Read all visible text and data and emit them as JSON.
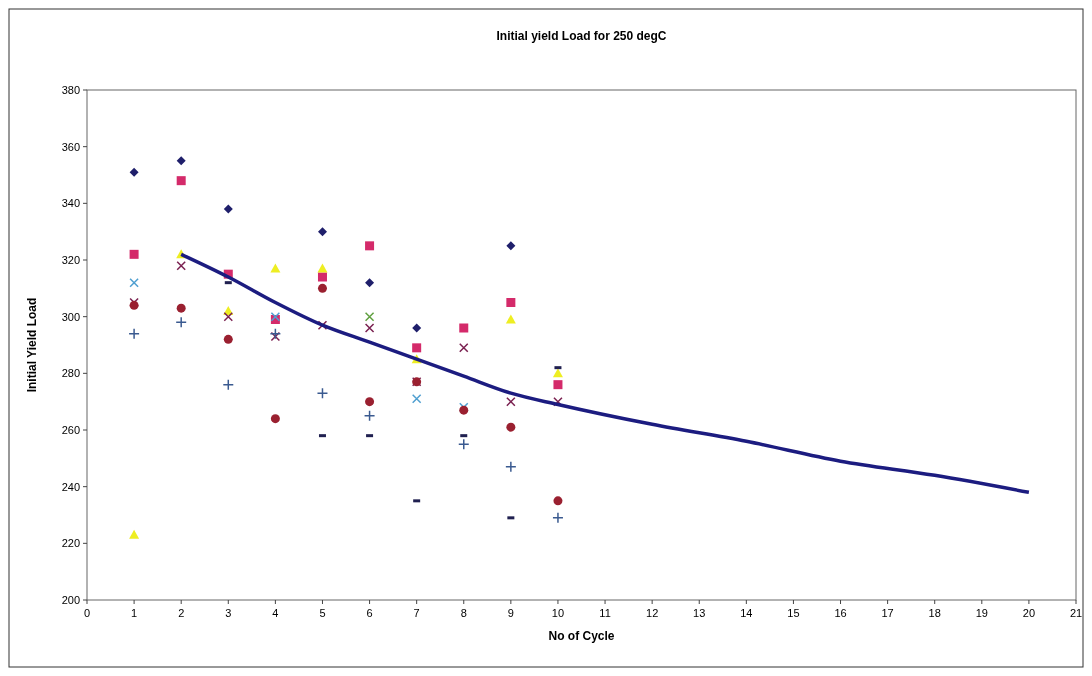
{
  "chart_data": {
    "type": "scatter",
    "title": "Initial yield Load for 250 degC",
    "xlabel": "No of Cycle",
    "ylabel": "Initial Yield Load",
    "xlim": [
      0,
      21
    ],
    "xticks": [
      0,
      1,
      2,
      3,
      4,
      5,
      6,
      7,
      8,
      9,
      10,
      11,
      12,
      13,
      14,
      15,
      16,
      17,
      18,
      19,
      20,
      21
    ],
    "ylim": [
      200,
      380
    ],
    "yticks": [
      200,
      220,
      240,
      260,
      280,
      300,
      320,
      340,
      360,
      380
    ],
    "grid": false,
    "series": [
      {
        "color": "#1f1f6b",
        "marker": "diamond",
        "x": [
          1,
          2,
          3,
          5,
          6,
          7,
          9
        ],
        "values": [
          351,
          355,
          338,
          330,
          312,
          296,
          325
        ]
      },
      {
        "color": "#d42a6a",
        "marker": "square",
        "x": [
          1,
          2,
          3,
          4,
          5,
          6,
          7,
          8,
          9,
          10
        ],
        "values": [
          322,
          348,
          315,
          299,
          314,
          325,
          289,
          296,
          305,
          276
        ]
      },
      {
        "color": "#eeee22",
        "marker": "triangle",
        "x": [
          1,
          2,
          3,
          4,
          5,
          7,
          9,
          10
        ],
        "values": [
          223,
          322,
          302,
          317,
          317,
          285,
          299,
          280
        ]
      },
      {
        "color": "#4f9fd0",
        "marker": "cross",
        "x": [
          1,
          4,
          7,
          8
        ],
        "values": [
          312,
          300,
          271,
          268
        ]
      },
      {
        "color": "#7a2050",
        "marker": "cross",
        "x": [
          1,
          2,
          3,
          4,
          5,
          6,
          7,
          8,
          9,
          10
        ],
        "values": [
          305,
          318,
          300,
          293,
          297,
          296,
          277,
          289,
          270,
          270
        ]
      },
      {
        "color": "#9a2030",
        "marker": "circle",
        "x": [
          1,
          2,
          3,
          4,
          5,
          6,
          7,
          8,
          9,
          10
        ],
        "values": [
          304,
          303,
          292,
          264,
          310,
          270,
          277,
          267,
          261,
          235
        ]
      },
      {
        "color": "#3a5a90",
        "marker": "plus",
        "x": [
          1,
          2,
          3,
          4,
          5,
          6,
          8,
          9,
          10
        ],
        "values": [
          294,
          298,
          276,
          294,
          273,
          265,
          255,
          247,
          229
        ]
      },
      {
        "color": "#202050",
        "x": [
          3,
          5,
          6,
          7,
          8,
          9,
          10
        ],
        "values": [
          312,
          258,
          258,
          235,
          258,
          229,
          282
        ]
      },
      {
        "color": "#60a040",
        "marker": "cross",
        "x": [
          6
        ],
        "values": [
          300
        ]
      },
      {
        "type": "line",
        "color": "#1c1c80",
        "marker": "none",
        "x": [
          2,
          3,
          4,
          5,
          6,
          7,
          8,
          9,
          10,
          12,
          14,
          16,
          18,
          20
        ],
        "values": [
          322,
          314,
          305,
          297,
          291,
          285,
          279,
          273,
          269,
          262,
          256,
          249,
          244,
          238
        ]
      }
    ]
  }
}
